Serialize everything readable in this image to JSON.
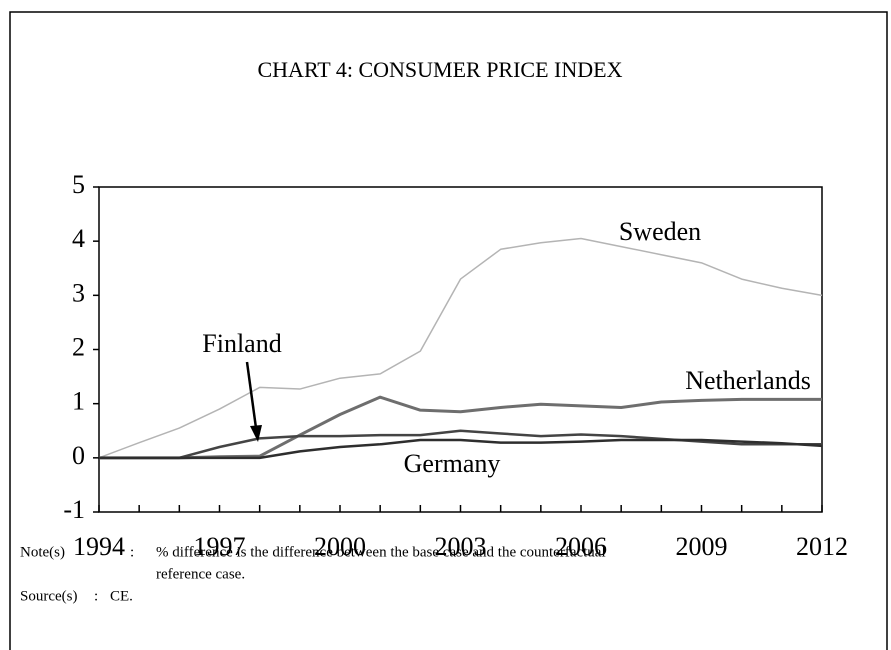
{
  "chart_data": {
    "type": "line",
    "title": "CHART 4: CONSUMER PRICE INDEX",
    "x": [
      1994,
      1995,
      1996,
      1997,
      1998,
      1999,
      2000,
      2001,
      2002,
      2003,
      2004,
      2005,
      2006,
      2007,
      2008,
      2009,
      2010,
      2011,
      2012
    ],
    "series": [
      {
        "name": "Sweden",
        "color": "#b4b4b4",
        "values": [
          0,
          0.28,
          0.55,
          0.9,
          1.3,
          1.27,
          1.47,
          1.55,
          1.97,
          3.3,
          3.85,
          3.97,
          4.05,
          3.9,
          3.75,
          3.6,
          3.3,
          3.13,
          3.0
        ]
      },
      {
        "name": "Netherlands",
        "color": "#6e6e6e",
        "values": [
          0,
          0,
          0,
          0.02,
          0.03,
          0.42,
          0.8,
          1.12,
          0.88,
          0.85,
          0.93,
          0.99,
          0.96,
          0.93,
          1.03,
          1.06,
          1.08,
          1.08,
          1.08
        ]
      },
      {
        "name": "Finland",
        "color": "#444444",
        "values": [
          0,
          0,
          0,
          0.2,
          0.36,
          0.4,
          0.4,
          0.42,
          0.42,
          0.5,
          0.45,
          0.4,
          0.43,
          0.4,
          0.35,
          0.3,
          0.25,
          0.25,
          0.25
        ]
      },
      {
        "name": "Germany",
        "color": "#2e2e2e",
        "values": [
          0,
          0,
          0,
          0,
          0,
          0.12,
          0.2,
          0.25,
          0.33,
          0.33,
          0.28,
          0.28,
          0.3,
          0.33,
          0.33,
          0.33,
          0.3,
          0.27,
          0.22
        ]
      }
    ],
    "xlim": [
      1994,
      2012
    ],
    "xticks": [
      1994,
      1997,
      2000,
      2003,
      2006,
      2009,
      2012
    ],
    "ylim": [
      -1,
      5
    ],
    "yticks": [
      -1,
      0,
      1,
      2,
      3,
      4,
      5
    ],
    "notes": [
      {
        "label": "Note(s)",
        "separator": ":",
        "lines": [
          "% difference is the difference between the base case and the counterfactual",
          "reference case."
        ]
      },
      {
        "label": "Source(s)",
        "separator": ":",
        "lines": [
          "CE."
        ]
      }
    ]
  }
}
